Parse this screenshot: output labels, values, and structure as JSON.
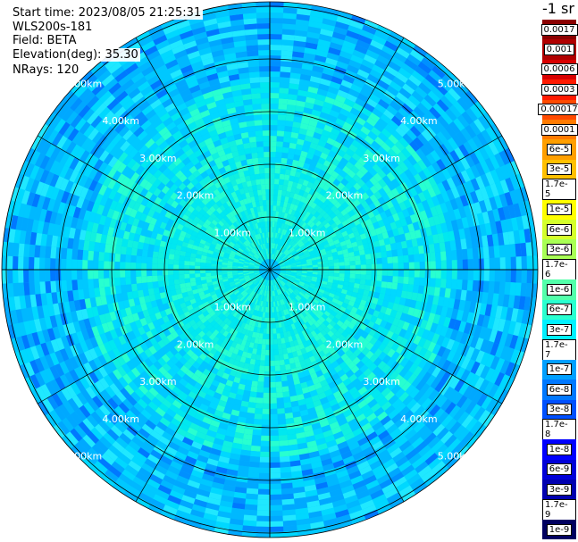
{
  "info": {
    "start_time": "Start time: 2023/08/05 21:25:31",
    "instrument": "WLS200s-181",
    "field": "Field: BETA",
    "elevation": "Elevation(deg): 35.30",
    "nrays": "NRays: 120"
  },
  "colorbar": {
    "unit": "-1 sr",
    "labels": [
      "0.0017",
      "0.001",
      "0.0006",
      "0.0003",
      "0.00017",
      "0.0001",
      "6e-5",
      "3e-5",
      "1.7e-5",
      "1e-5",
      "6e-6",
      "3e-6",
      "1.7e-6",
      "1e-6",
      "6e-7",
      "3e-7",
      "1.7e-7",
      "1e-7",
      "6e-8",
      "3e-8",
      "1.7e-8",
      "1e-8",
      "6e-9",
      "3e-9",
      "1.7e-9",
      "1e-9"
    ],
    "colors": [
      "#8b0000",
      "#b00000",
      "#d80000",
      "#ff1a00",
      "#ff4a00",
      "#ff7a00",
      "#ff9f00",
      "#ffc000",
      "#ffe000",
      "#ffff00",
      "#d4ff2a",
      "#a8ff55",
      "#7cff80",
      "#52ffaa",
      "#2affd0",
      "#00f0ff",
      "#00c8ff",
      "#00a0ff",
      "#0078ff",
      "#0050ff",
      "#0028ff",
      "#0000ff",
      "#0000d8",
      "#0000b0",
      "#000088",
      "#000060"
    ]
  },
  "chart_data": {
    "type": "heatmap",
    "projection": "polar (PPI scan)",
    "rays": 120,
    "range_rings_km": [
      1,
      2,
      3,
      4,
      5
    ],
    "ring_labels": [
      "1.00km",
      "2.00km",
      "3.00km",
      "4.00km",
      "5.00km"
    ],
    "max_range_km": 5.0,
    "radial_lines": 12,
    "field": "BETA",
    "gridlines": true,
    "colorbar_position": "right"
  }
}
